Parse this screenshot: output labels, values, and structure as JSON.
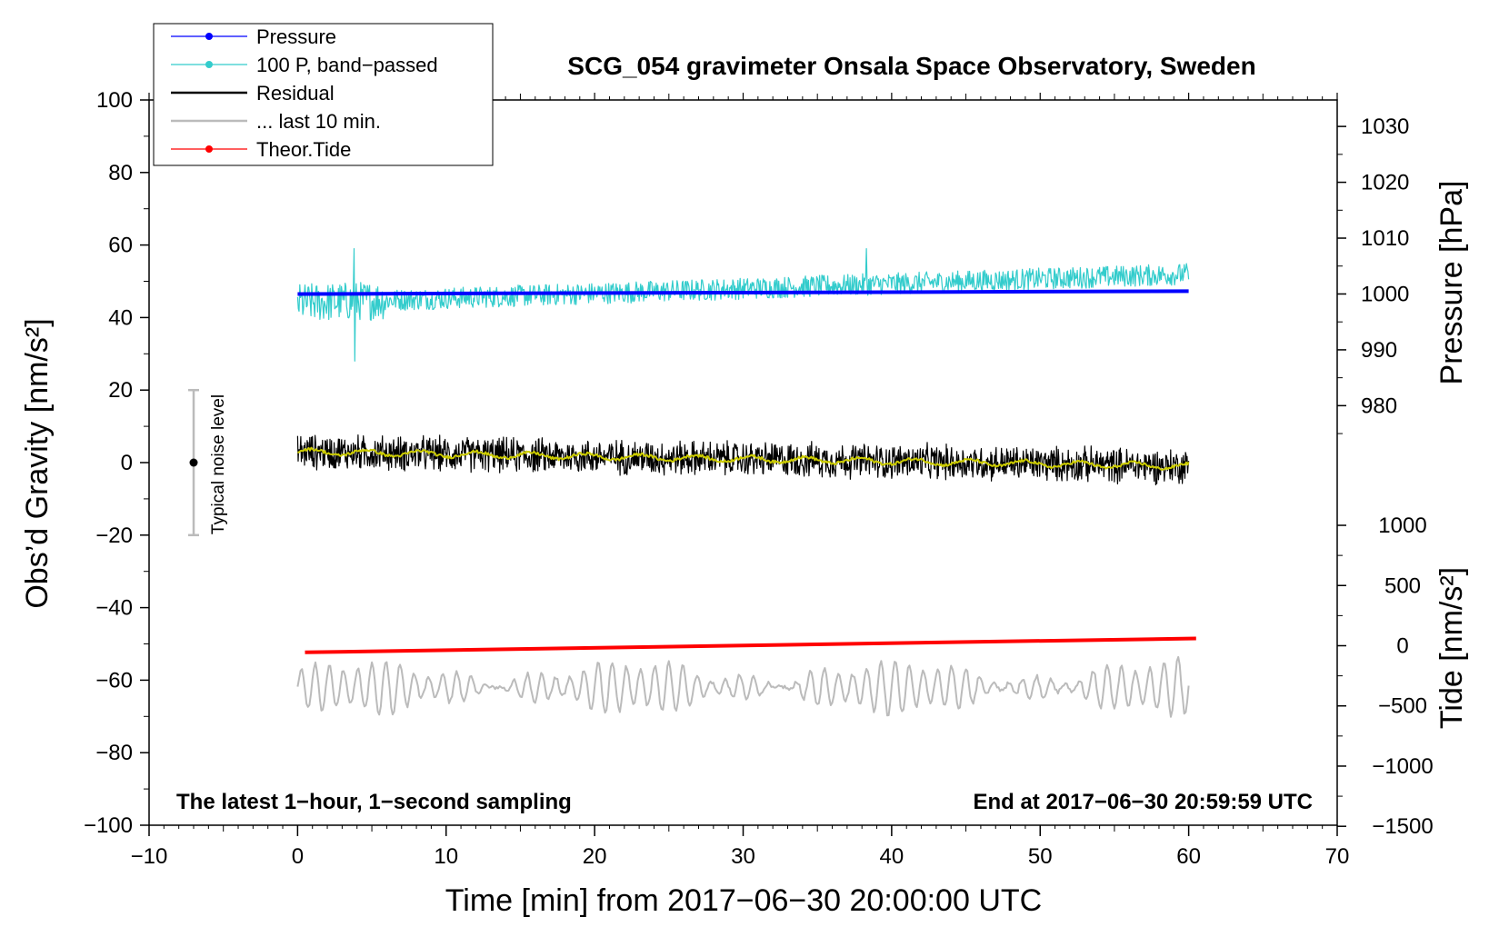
{
  "chart_data": {
    "type": "line",
    "title": "SCG_054 gravimeter Onsala Space Observatory, Sweden",
    "xlabel": "Time [min] from 2017−06−30 20:00:00 UTC",
    "ylabel_left": "Obs’d Gravity [nm/s²]",
    "ylabel_right_top": "Pressure [hPa]",
    "ylabel_right_bottom": "Tide [nm/s²]",
    "xlim": [
      -10,
      70
    ],
    "ylim": [
      -100,
      100
    ],
    "x_ticks": [
      -10,
      0,
      10,
      20,
      30,
      40,
      50,
      60,
      70
    ],
    "x_tick_labels": [
      "−10",
      "0",
      "10",
      "20",
      "30",
      "40",
      "50",
      "60",
      "70"
    ],
    "y_ticks": [
      -100,
      -80,
      -60,
      -40,
      -20,
      0,
      20,
      40,
      60,
      80,
      100
    ],
    "y_tick_labels": [
      "−100",
      "−80",
      "−60",
      "−40",
      "−20",
      "0",
      "20",
      "40",
      "60",
      "80",
      "100"
    ],
    "pressure_axis": {
      "ticks": [
        980,
        990,
        1000,
        1010,
        1020,
        1030
      ],
      "tick_labels": [
        "980",
        "990",
        "1000",
        "1010",
        "1020",
        "1030"
      ],
      "map": {
        "at_value": 1000,
        "gravity_equiv": 46.5,
        "per_hpa": 1.54
      }
    },
    "tide_axis": {
      "ticks": [
        -1500,
        -1000,
        -500,
        0,
        500,
        1000
      ],
      "tick_labels": [
        "−1500",
        "−1000",
        "−500",
        "0",
        "500",
        "1000"
      ],
      "map": {
        "at_value": 0,
        "gravity_equiv": -50.5,
        "per_unit": 0.0332
      }
    },
    "legend": [
      {
        "label": "Pressure",
        "color": "#0000ff",
        "marker": true
      },
      {
        "label": "100 P, band−passed",
        "color": "#33cccc",
        "marker": true
      },
      {
        "label": "Residual",
        "color": "#000000",
        "marker": false
      },
      {
        "label": "... last 10 min.",
        "color": "#bbbbbb",
        "marker": false
      },
      {
        "label": "Theor.Tide",
        "color": "#ff0000",
        "marker": true
      }
    ],
    "series": [
      {
        "name": "Pressure",
        "color": "#0000ff",
        "axis": "pressure",
        "x_range": [
          0,
          60
        ],
        "start": 1000.0,
        "end": 1000.5,
        "noise_amplitude": 0
      },
      {
        "name": "100 P, band−passed",
        "color": "#33cccc",
        "axis": "gravity",
        "x_range": [
          0,
          60
        ],
        "baseline_start": 44,
        "baseline_end": 52,
        "noise_amplitude": 3,
        "notable_peaks": [
          {
            "x": 3.8,
            "y": 59
          },
          {
            "x": 3.8,
            "y": 28
          },
          {
            "x": 38.3,
            "y": 59
          }
        ]
      },
      {
        "name": "Residual",
        "color": "#000000",
        "axis": "gravity",
        "x_range": [
          0,
          60
        ],
        "baseline_start": 3,
        "baseline_end": -1,
        "noise_amplitude": 4
      },
      {
        "name": "Residual smoothed",
        "color": "#cccc00",
        "axis": "gravity",
        "x_range": [
          0,
          60
        ],
        "baseline_start": 3,
        "baseline_end": -1,
        "noise_amplitude": 1
      },
      {
        "name": "Theor.Tide",
        "color": "#ff0000",
        "axis": "tide",
        "x_range": [
          0.5,
          60.5
        ],
        "start": -55,
        "end": 60,
        "noise_amplitude": 0
      },
      {
        "name": "... last 10 min.",
        "color": "#bbbbbb",
        "axis": "gravity",
        "x_range": [
          0,
          60
        ],
        "baseline_start": -62,
        "baseline_end": -62,
        "noise_amplitude": 4
      }
    ],
    "noise_bar": {
      "label": "Typical noise level",
      "x": -7,
      "y_low": -20,
      "y_high": 20,
      "center": 0
    },
    "annotations": {
      "bottom_left": "The latest 1−hour, 1−second sampling",
      "bottom_right": "End at 2017−06−30 20:59:59 UTC"
    }
  }
}
